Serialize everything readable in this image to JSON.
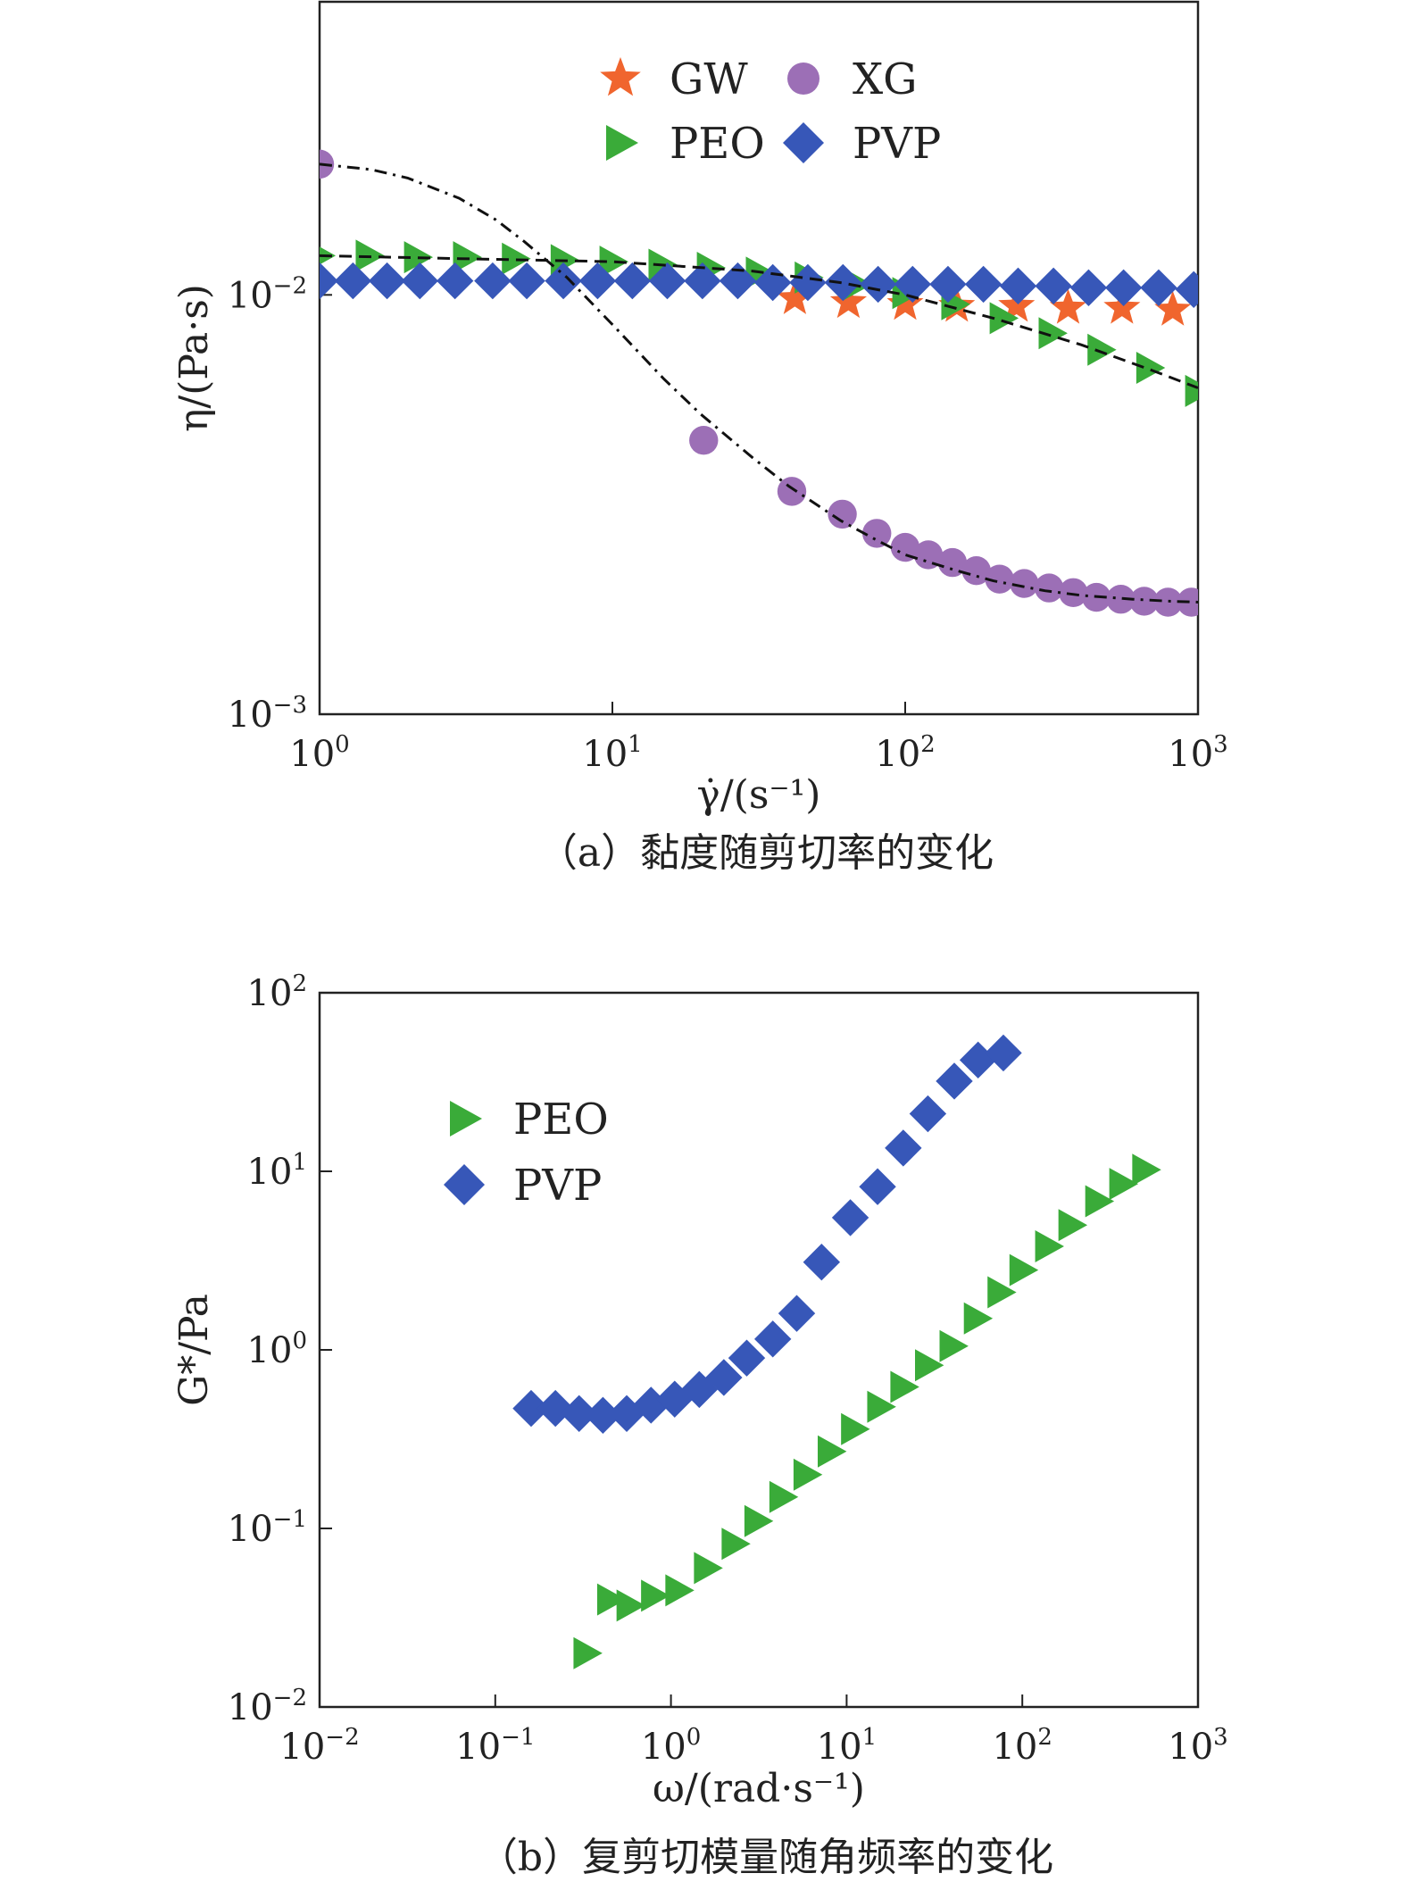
{
  "chart_data": [
    {
      "type": "scatter",
      "caption": "（a）黏度随剪切率的变化",
      "xlabel": "γ̇/(s⁻¹)",
      "ylabel": "η/(Pa·s)",
      "xscale": "log",
      "yscale": "log",
      "xlim": [
        1,
        1000
      ],
      "ylim": [
        0.001,
        0.05
      ],
      "x_ticks": [
        {
          "base": "10",
          "exp": "0"
        },
        {
          "base": "10",
          "exp": "1"
        },
        {
          "base": "10",
          "exp": "2"
        },
        {
          "base": "10",
          "exp": "3"
        }
      ],
      "y_ticks": [
        {
          "base": "10",
          "exp": "−3"
        },
        {
          "base": "10",
          "exp": "−2"
        }
      ],
      "legend": {
        "position": "top-center",
        "columns": 2
      },
      "series": [
        {
          "name": "GW",
          "marker": "star",
          "color": "#f0652e",
          "x": [
            42,
            64,
            100,
            150,
            240,
            360,
            550,
            820
          ],
          "y": [
            0.0098,
            0.0096,
            0.0095,
            0.0094,
            0.0094,
            0.0093,
            0.0093,
            0.0092
          ]
        },
        {
          "name": "XG",
          "marker": "circle",
          "color": "#9c6fb6",
          "x": [
            1.0,
            20.5,
            41,
            61,
            80,
            100,
            120,
            145,
            175,
            210,
            255,
            310,
            375,
            450,
            545,
            655,
            790,
            950
          ],
          "y": [
            0.0205,
            0.0045,
            0.0034,
            0.003,
            0.0027,
            0.0025,
            0.0024,
            0.0023,
            0.0022,
            0.0021,
            0.00205,
            0.002,
            0.00195,
            0.0019,
            0.00188,
            0.00186,
            0.00185,
            0.00185
          ]
        },
        {
          "name": "PEO",
          "marker": "triangle-right",
          "color": "#3aab39",
          "x": [
            1.0,
            1.47,
            2.15,
            3.16,
            4.64,
            6.81,
            10.0,
            14.7,
            21.5,
            31.6,
            46.4,
            68.1,
            100,
            147,
            215,
            316,
            464,
            681,
            1000
          ],
          "y": [
            0.0124,
            0.0124,
            0.0123,
            0.0123,
            0.0122,
            0.0121,
            0.012,
            0.0118,
            0.0116,
            0.0113,
            0.011,
            0.0106,
            0.0101,
            0.0095,
            0.0088,
            0.0081,
            0.0074,
            0.0067,
            0.0059
          ]
        },
        {
          "name": "PVP",
          "marker": "diamond",
          "color": "#3757b8",
          "x": [
            1.0,
            1.3,
            1.7,
            2.2,
            2.9,
            3.9,
            5.1,
            6.8,
            8.9,
            11.7,
            15.4,
            20.3,
            26.8,
            35.3,
            46.5,
            61.3,
            80.8,
            106,
            140,
            185,
            243,
            321,
            423,
            557,
            734,
            967
          ],
          "y": [
            0.0108,
            0.0108,
            0.0108,
            0.0108,
            0.0108,
            0.0108,
            0.0108,
            0.0108,
            0.0108,
            0.0108,
            0.0108,
            0.0108,
            0.0108,
            0.0107,
            0.0107,
            0.0107,
            0.0106,
            0.0106,
            0.0106,
            0.0106,
            0.0105,
            0.0105,
            0.0104,
            0.0104,
            0.0104,
            0.0103
          ]
        }
      ],
      "fits": [
        {
          "style": "dashdot",
          "color": "#111111",
          "x": [
            1,
            1.5,
            2,
            3,
            4,
            5,
            7,
            10,
            15,
            20,
            30,
            40,
            60,
            80,
            100,
            150,
            200,
            300,
            400,
            600,
            800,
            1000
          ],
          "y": [
            0.0205,
            0.0199,
            0.019,
            0.017,
            0.0151,
            0.0134,
            0.011,
            0.0085,
            0.0063,
            0.0052,
            0.0041,
            0.0035,
            0.0029,
            0.0026,
            0.0024,
            0.0022,
            0.00208,
            0.00197,
            0.00192,
            0.00188,
            0.00186,
            0.00185
          ]
        },
        {
          "style": "dashed",
          "color": "#111111",
          "x": [
            1,
            3,
            10,
            30,
            60,
            100,
            200,
            400,
            700,
            1000
          ],
          "y": [
            0.0124,
            0.0122,
            0.012,
            0.0114,
            0.0107,
            0.01,
            0.0088,
            0.0076,
            0.0066,
            0.006
          ]
        }
      ]
    },
    {
      "type": "scatter",
      "caption": "（b）复剪切模量随角频率的变化",
      "xlabel": "ω/(rad·s⁻¹)",
      "ylabel": "G*/Pa",
      "xscale": "log",
      "yscale": "log",
      "xlim": [
        0.01,
        1000
      ],
      "ylim": [
        0.01,
        100
      ],
      "x_ticks": [
        {
          "base": "10",
          "exp": "−2"
        },
        {
          "base": "10",
          "exp": "−1"
        },
        {
          "base": "10",
          "exp": "0"
        },
        {
          "base": "10",
          "exp": "1"
        },
        {
          "base": "10",
          "exp": "2"
        },
        {
          "base": "10",
          "exp": "3"
        }
      ],
      "y_ticks": [
        {
          "base": "10",
          "exp": "−2"
        },
        {
          "base": "10",
          "exp": "−1"
        },
        {
          "base": "10",
          "exp": "0"
        },
        {
          "base": "10",
          "exp": "1"
        },
        {
          "base": "10",
          "exp": "2"
        }
      ],
      "legend": {
        "position": "upper-left",
        "columns": 1
      },
      "series": [
        {
          "name": "PEO",
          "marker": "triangle-right",
          "color": "#3aab39",
          "x": [
            0.33,
            0.45,
            0.58,
            0.8,
            1.1,
            1.6,
            2.3,
            3.1,
            4.3,
            5.9,
            8.1,
            11,
            15.5,
            21,
            29,
            40,
            55,
            75,
            100,
            140,
            190,
            270,
            370,
            500
          ],
          "y": [
            0.02,
            0.04,
            0.037,
            0.042,
            0.045,
            0.06,
            0.082,
            0.11,
            0.15,
            0.2,
            0.27,
            0.36,
            0.48,
            0.62,
            0.82,
            1.05,
            1.5,
            2.1,
            2.8,
            3.8,
            5.0,
            6.8,
            8.5,
            10.2
          ]
        },
        {
          "name": "PVP",
          "marker": "diamond",
          "color": "#3757b8",
          "x": [
            0.16,
            0.22,
            0.3,
            0.41,
            0.56,
            0.77,
            1.05,
            1.45,
            2.0,
            2.7,
            3.8,
            5.2,
            7.2,
            10.5,
            15,
            21,
            29,
            41,
            56,
            78
          ],
          "y": [
            0.47,
            0.47,
            0.44,
            0.43,
            0.44,
            0.49,
            0.53,
            0.6,
            0.7,
            0.9,
            1.15,
            1.6,
            3.1,
            5.5,
            8.2,
            13.5,
            21,
            32,
            42,
            46
          ]
        }
      ]
    }
  ]
}
